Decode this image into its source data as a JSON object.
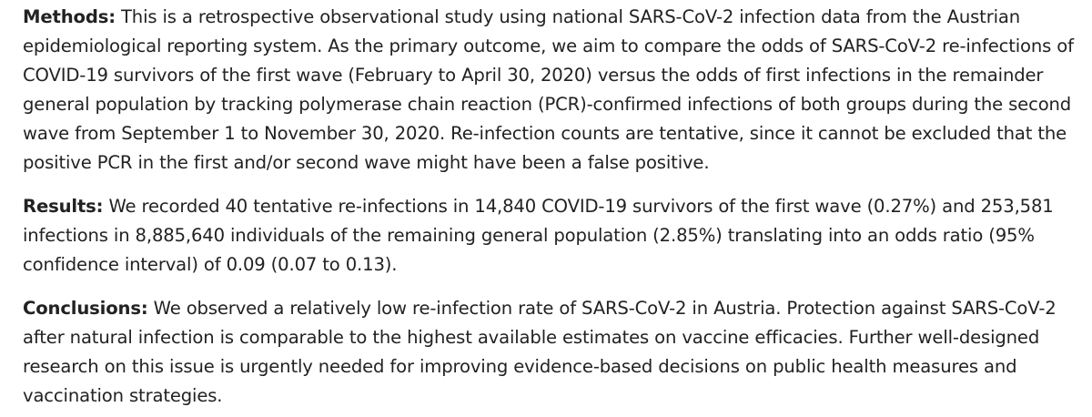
{
  "abstract": {
    "methods": {
      "label": "Methods:",
      "text": "This is a retrospective observational study using national SARS-CoV-2 infection data from the Austrian epidemiological reporting system. As the primary outcome, we aim to compare the odds of SARS-CoV-2 re-infections of COVID-19 survivors of the first wave (February to April 30, 2020) versus the odds of first infections in the remainder general population by tracking polymerase chain reaction (PCR)-confirmed infections of both groups during the second wave from September 1 to November 30, 2020. Re-infection counts are tentative, since it cannot be excluded that the positive PCR in the first and/or second wave might have been a false positive."
    },
    "results": {
      "label": "Results:",
      "text": "We recorded 40 tentative re-infections in 14,840 COVID-19 survivors of the first wave (0.27%) and 253,581 infections in 8,885,640 individuals of the remaining general population (2.85%) translating into an odds ratio (95% confidence interval) of 0.09 (0.07 to 0.13)."
    },
    "conclusions": {
      "label": "Conclusions:",
      "text": "We observed a relatively low re-infection rate of SARS-CoV-2 in Austria. Protection against SARS-CoV-2 after natural infection is comparable to the highest available estimates on vaccine efficacies. Further well-designed research on this issue is urgently needed for improving evidence-based decisions on public health measures and vaccination strategies."
    }
  }
}
